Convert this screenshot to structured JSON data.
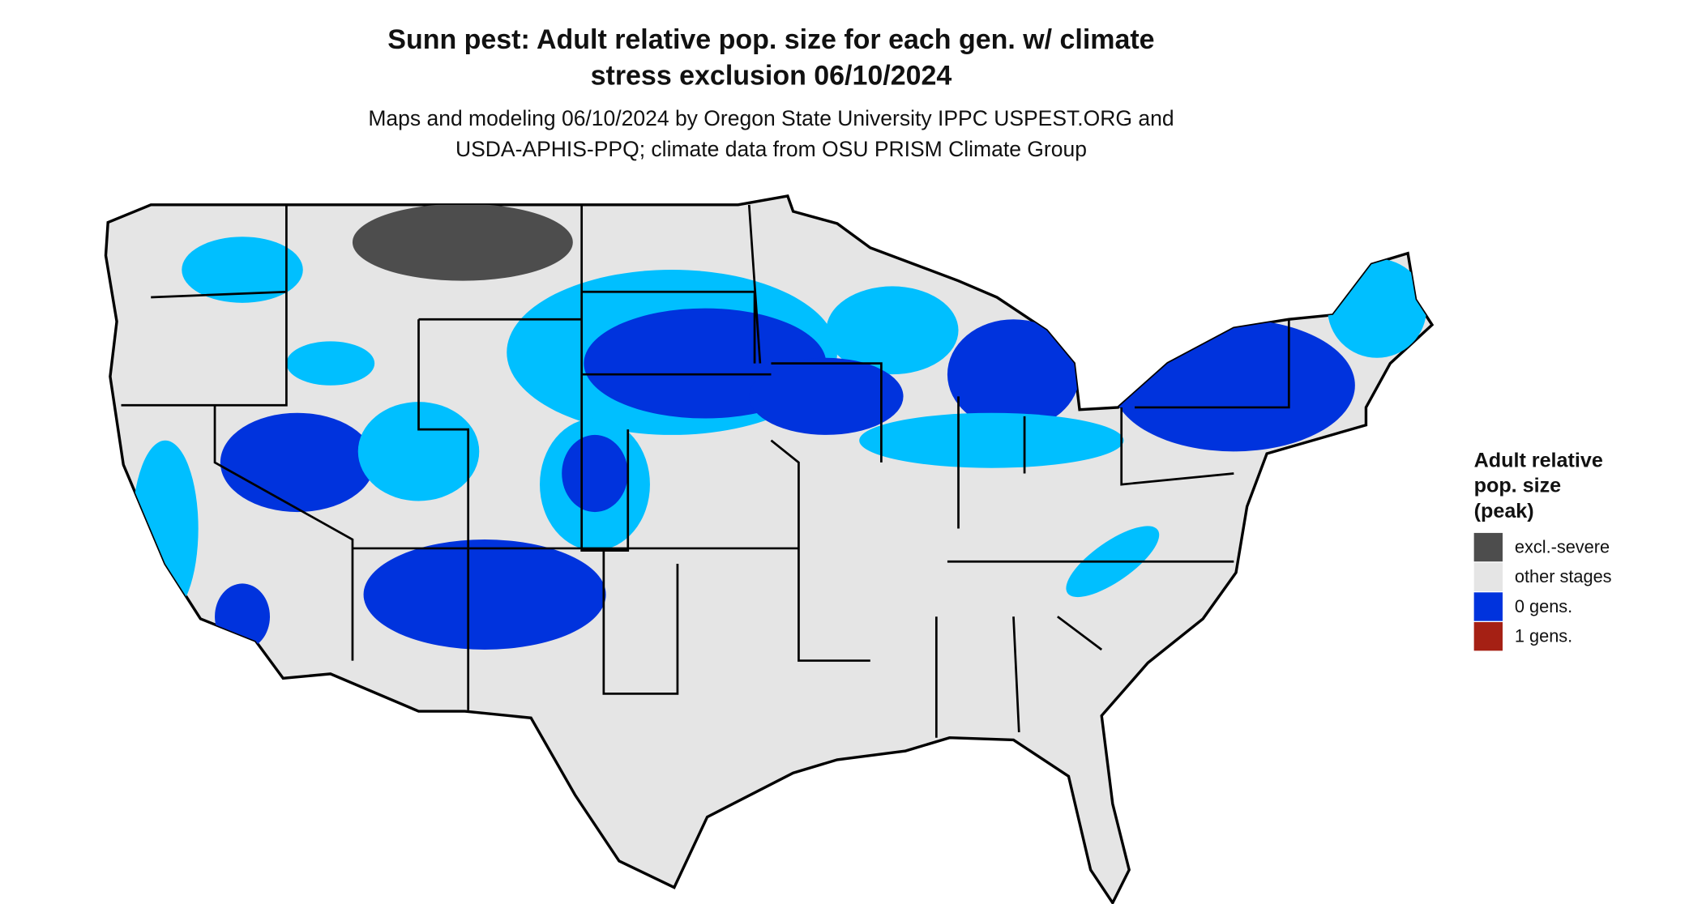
{
  "title": [
    "Sunn pest: Adult relative pop. size for each gen. w/ climate",
    "stress exclusion 06/10/2024"
  ],
  "subtitle": [
    "Maps and modeling 06/10/2024 by Oregon State University IPPC USPEST.ORG and",
    "USDA-APHIS-PPQ; climate data from OSU PRISM Climate Group"
  ],
  "legend": {
    "title": [
      "Adult relative",
      "pop. size",
      "(peak)"
    ],
    "items": [
      {
        "label": "excl.-severe",
        "color": "#4d4d4d"
      },
      {
        "label": "other stages",
        "color": "#e5e5e5"
      },
      {
        "label": "0 gens.",
        "color": "#0033dd"
      },
      {
        "label": "1 gens.",
        "color": "#a52014"
      }
    ]
  }
}
